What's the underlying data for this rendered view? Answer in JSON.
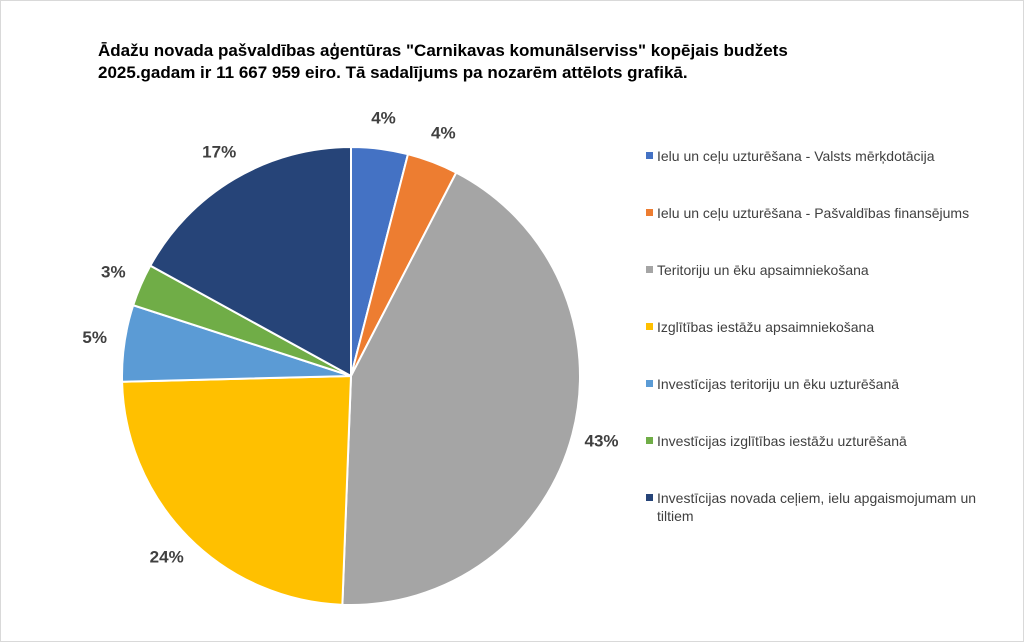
{
  "chart_data": {
    "type": "pie",
    "title_lines": [
      "Ādažu novada pašvaldības aģentūras \"Carnikavas komunālserviss\" kopējais budžets",
      "2025.gadam ir 11 667 959 eiro. Tā sadalījums pa nozarēm attēlots grafikā."
    ],
    "legend_position": "right",
    "slices": [
      {
        "label": "Ielu un ceļu uzturēšana - Valsts mērķdotācija",
        "value": 4,
        "display": "4%",
        "color": "#4472C4"
      },
      {
        "label": "Ielu un ceļu uzturēšana - Pašvaldības finansējums",
        "value": 3.6,
        "display": "4%",
        "color": "#ED7D31"
      },
      {
        "label": "Teritoriju un ēku apsaimniekošana",
        "value": 43,
        "display": "43%",
        "color": "#A5A5A5"
      },
      {
        "label": "Izglītības iestāžu apsaimniekošana",
        "value": 24,
        "display": "24%",
        "color": "#FFC000"
      },
      {
        "label": "Investīcijas teritoriju un ēku uzturēšanā",
        "value": 5.4,
        "display": "5%",
        "color": "#5B9BD5"
      },
      {
        "label": "Investīcijas izglītības iestāžu uzturēšanā",
        "value": 3,
        "display": "3%",
        "color": "#70AD47"
      },
      {
        "label": "Investīcijas novada ceļiem, ielu apgaismojumam un tiltiem",
        "value": 17,
        "display": "17%",
        "color": "#264478"
      }
    ]
  }
}
